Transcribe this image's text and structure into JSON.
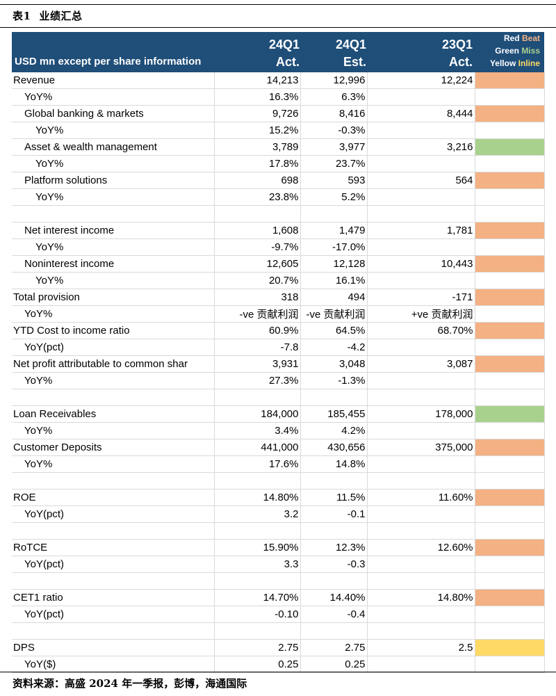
{
  "title": {
    "number": "表1",
    "text": "业绩汇总"
  },
  "header": {
    "row_label": "USD mn except per share information",
    "columns": [
      {
        "period": "24Q1",
        "kind": "Act."
      },
      {
        "period": "24Q1",
        "kind": "Est."
      },
      {
        "period": "23Q1",
        "kind": "Act."
      }
    ],
    "legend": [
      {
        "label": "Red",
        "meaning": "Beat",
        "color": "#f4b183"
      },
      {
        "label": "Green",
        "meaning": "Miss",
        "color": "#a9d18e"
      },
      {
        "label": "Yellow",
        "meaning": "Inline",
        "color": "#ffd966"
      }
    ]
  },
  "rows": [
    {
      "label": "Revenue",
      "indent": 0,
      "values": [
        "14,213",
        "12,996",
        "12,224"
      ],
      "flag": "red"
    },
    {
      "label": "YoY%",
      "indent": 1,
      "values": [
        "16.3%",
        "6.3%",
        ""
      ],
      "flag": ""
    },
    {
      "label": "Global banking & markets",
      "indent": 1,
      "values": [
        "9,726",
        "8,416",
        "8,444"
      ],
      "flag": "red"
    },
    {
      "label": "YoY%",
      "indent": 2,
      "values": [
        "15.2%",
        "-0.3%",
        ""
      ],
      "flag": ""
    },
    {
      "label": "Asset & wealth management",
      "indent": 1,
      "values": [
        "3,789",
        "3,977",
        "3,216"
      ],
      "flag": "green"
    },
    {
      "label": "YoY%",
      "indent": 2,
      "values": [
        "17.8%",
        "23.7%",
        ""
      ],
      "flag": ""
    },
    {
      "label": "Platform solutions",
      "indent": 1,
      "values": [
        "698",
        "593",
        "564"
      ],
      "flag": "red"
    },
    {
      "label": "YoY%",
      "indent": 2,
      "values": [
        "23.8%",
        "5.2%",
        ""
      ],
      "flag": ""
    },
    {
      "label": "",
      "indent": 0,
      "values": [
        "",
        "",
        ""
      ],
      "flag": ""
    },
    {
      "label": "Net interest income",
      "indent": 1,
      "values": [
        "1,608",
        "1,479",
        "1,781"
      ],
      "flag": "red"
    },
    {
      "label": "YoY%",
      "indent": 2,
      "values": [
        "-9.7%",
        "-17.0%",
        ""
      ],
      "flag": ""
    },
    {
      "label": "Noninterest income",
      "indent": 1,
      "values": [
        "12,605",
        "12,128",
        "10,443"
      ],
      "flag": "red"
    },
    {
      "label": "YoY%",
      "indent": 2,
      "values": [
        "20.7%",
        "16.1%",
        ""
      ],
      "flag": ""
    },
    {
      "label": "Total provision",
      "indent": 0,
      "values": [
        "318",
        "494",
        "-171"
      ],
      "flag": "red"
    },
    {
      "label": "YoY%",
      "indent": 1,
      "values": [
        "-ve 贡献利润",
        "-ve 贡献利润",
        "+ve 贡献利润"
      ],
      "flag": ""
    },
    {
      "label": "YTD Cost to income ratio",
      "indent": 0,
      "values": [
        "60.9%",
        "64.5%",
        "68.70%"
      ],
      "flag": "red"
    },
    {
      "label": "YoY(pct)",
      "indent": 1,
      "values": [
        "-7.8",
        "-4.2",
        ""
      ],
      "flag": ""
    },
    {
      "label": "Net profit attributable to common shar",
      "indent": 0,
      "values": [
        "3,931",
        "3,048",
        "3,087"
      ],
      "flag": "red"
    },
    {
      "label": "YoY%",
      "indent": 1,
      "values": [
        "27.3%",
        "-1.3%",
        ""
      ],
      "flag": ""
    },
    {
      "label": "",
      "indent": 0,
      "values": [
        "",
        "",
        ""
      ],
      "flag": ""
    },
    {
      "label": "Loan Receivables",
      "indent": 0,
      "values": [
        "184,000",
        "185,455",
        "178,000"
      ],
      "flag": "green"
    },
    {
      "label": "YoY%",
      "indent": 1,
      "values": [
        "3.4%",
        "4.2%",
        ""
      ],
      "flag": ""
    },
    {
      "label": "Customer Deposits",
      "indent": 0,
      "values": [
        "441,000",
        "430,656",
        "375,000"
      ],
      "flag": "red"
    },
    {
      "label": "YoY%",
      "indent": 1,
      "values": [
        "17.6%",
        "14.8%",
        ""
      ],
      "flag": ""
    },
    {
      "label": "",
      "indent": 0,
      "values": [
        "",
        "",
        ""
      ],
      "flag": ""
    },
    {
      "label": "ROE",
      "indent": 0,
      "values": [
        "14.80%",
        "11.5%",
        "11.60%"
      ],
      "flag": "red"
    },
    {
      "label": "YoY(pct)",
      "indent": 1,
      "values": [
        "3.2",
        "-0.1",
        ""
      ],
      "flag": ""
    },
    {
      "label": "",
      "indent": 0,
      "values": [
        "",
        "",
        ""
      ],
      "flag": ""
    },
    {
      "label": "RoTCE",
      "indent": 0,
      "values": [
        "15.90%",
        "12.3%",
        "12.60%"
      ],
      "flag": "red"
    },
    {
      "label": "YoY(pct)",
      "indent": 1,
      "values": [
        "3.3",
        "-0.3",
        ""
      ],
      "flag": ""
    },
    {
      "label": "",
      "indent": 0,
      "values": [
        "",
        "",
        ""
      ],
      "flag": ""
    },
    {
      "label": "CET1 ratio",
      "indent": 0,
      "values": [
        "14.70%",
        "14.40%",
        "14.80%"
      ],
      "flag": "red"
    },
    {
      "label": "YoY(pct)",
      "indent": 1,
      "values": [
        "-0.10",
        "-0.4",
        ""
      ],
      "flag": ""
    },
    {
      "label": "",
      "indent": 0,
      "values": [
        "",
        "",
        ""
      ],
      "flag": ""
    },
    {
      "label": "DPS",
      "indent": 0,
      "values": [
        "2.75",
        "2.75",
        "2.5"
      ],
      "flag": "yellow"
    },
    {
      "label": "YoY($)",
      "indent": 1,
      "values": [
        "0.25",
        "0.25",
        ""
      ],
      "flag": ""
    }
  ],
  "footer": {
    "source": "资料来源：高盛 2024 年一季报，彭博，海通国际"
  }
}
